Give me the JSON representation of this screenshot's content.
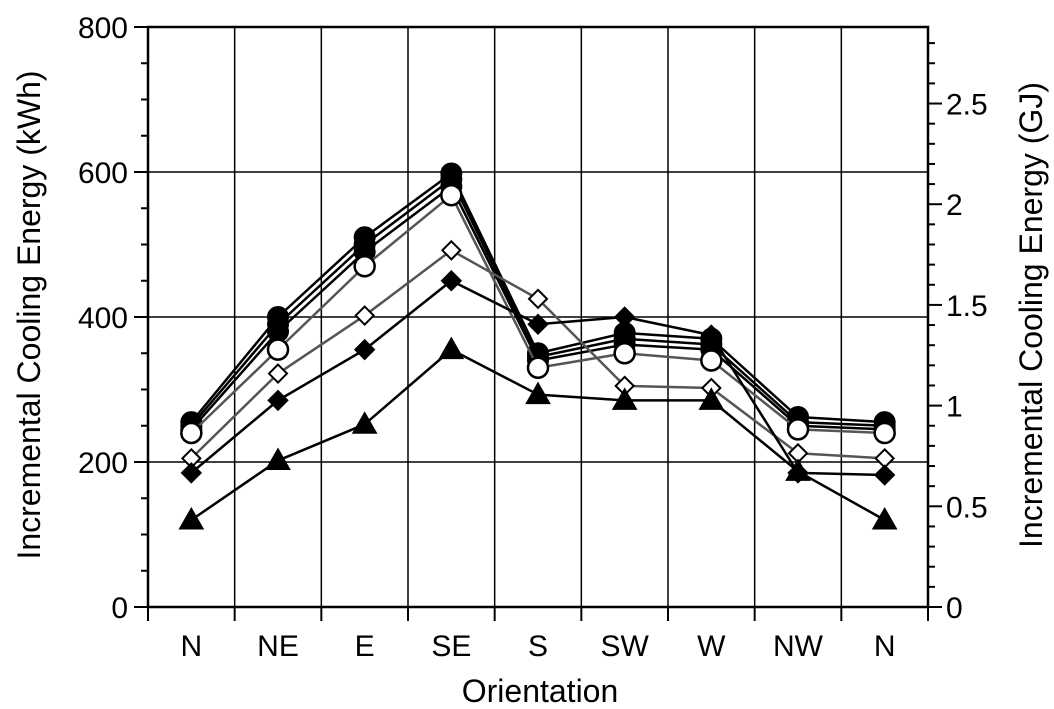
{
  "chart_data": {
    "type": "line",
    "xlabel": "Orientation",
    "ylabel": "Incremental Cooling Energy (kWh)",
    "y2label": "Incremental Cooling Energy (GJ)",
    "categories": [
      "N",
      "NE",
      "E",
      "SE",
      "S",
      "SW",
      "W",
      "NW",
      "N"
    ],
    "ylim": [
      0,
      800
    ],
    "y2lim": [
      0,
      2.88
    ],
    "yticks": [
      0,
      200,
      400,
      600,
      800
    ],
    "y2ticks": [
      0,
      0.5,
      1,
      1.5,
      2,
      2.5
    ],
    "grid": true,
    "series": [
      {
        "marker": "filled-circle",
        "values": [
          255,
          400,
          510,
          598,
          350,
          378,
          370,
          262,
          255
        ]
      },
      {
        "marker": "filled-circle",
        "values": [
          250,
          390,
          500,
          590,
          345,
          370,
          362,
          255,
          250
        ]
      },
      {
        "marker": "filled-circle",
        "values": [
          245,
          380,
          490,
          580,
          340,
          362,
          355,
          250,
          245
        ]
      },
      {
        "marker": "open-circle",
        "values": [
          240,
          355,
          470,
          568,
          330,
          350,
          340,
          245,
          240
        ]
      },
      {
        "marker": "open-diamond",
        "values": [
          205,
          322,
          402,
          492,
          425,
          305,
          302,
          212,
          205
        ]
      },
      {
        "marker": "filled-diamond",
        "values": [
          185,
          285,
          355,
          450,
          390,
          400,
          375,
          185,
          182
        ]
      },
      {
        "marker": "filled-triangle",
        "values": [
          120,
          202,
          252,
          355,
          293,
          285,
          285,
          187,
          120
        ]
      }
    ]
  }
}
